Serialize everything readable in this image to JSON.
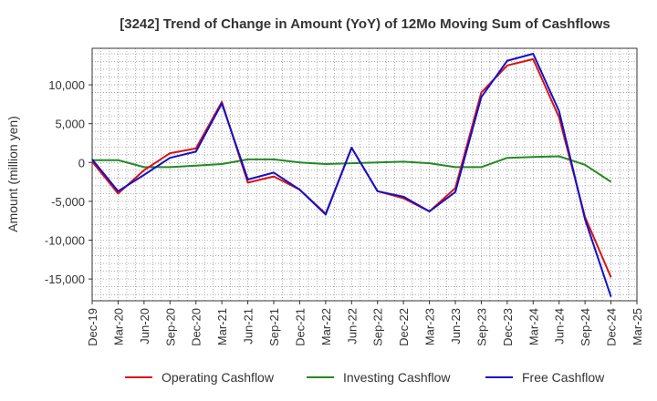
{
  "chart_data": {
    "type": "line",
    "title": "[3242]  Trend of Change in Amount (YoY) of 12Mo Moving Sum of Cashflows",
    "xlabel": "",
    "ylabel": "Amount (million yen)",
    "ylim": [
      -17800,
      14700
    ],
    "yticks": [
      10000,
      5000,
      0,
      -5000,
      -10000,
      -15000
    ],
    "ytick_labels": [
      "10,000",
      "5,000",
      "0",
      "-5,000",
      "-10,000",
      "-15,000"
    ],
    "grid": true,
    "legend_position": "bottom",
    "categories": [
      "Dec-19",
      "Mar-20",
      "Jun-20",
      "Sep-20",
      "Dec-20",
      "Mar-21",
      "Jun-21",
      "Sep-21",
      "Dec-21",
      "Mar-22",
      "Jun-22",
      "Sep-22",
      "Dec-22",
      "Mar-23",
      "Jun-23",
      "Sep-23",
      "Dec-23",
      "Mar-24",
      "Jun-24",
      "Sep-24",
      "Dec-24",
      "Mar-25"
    ],
    "series": [
      {
        "name": "Operating Cashflow",
        "color": "#dd1111",
        "values": [
          100,
          -4000,
          -1000,
          1200,
          1800,
          7800,
          -2600,
          -1800,
          -3500,
          -6600,
          1900,
          -3700,
          -4600,
          -6300,
          -3300,
          9000,
          12500,
          13300,
          5800,
          -7000,
          -14800,
          null
        ]
      },
      {
        "name": "Investing Cashflow",
        "color": "#228B22",
        "values": [
          300,
          300,
          -600,
          -600,
          -400,
          -200,
          400,
          400,
          0,
          -200,
          -100,
          0,
          100,
          -100,
          -600,
          -600,
          600,
          700,
          800,
          -300,
          -2500,
          null
        ]
      },
      {
        "name": "Free Cashflow",
        "color": "#1111cc",
        "values": [
          400,
          -3700,
          -1600,
          600,
          1400,
          7600,
          -2200,
          -1300,
          -3500,
          -6700,
          1900,
          -3700,
          -4400,
          -6300,
          -3800,
          8400,
          13100,
          14000,
          6600,
          -7300,
          -17300,
          null
        ]
      }
    ]
  }
}
